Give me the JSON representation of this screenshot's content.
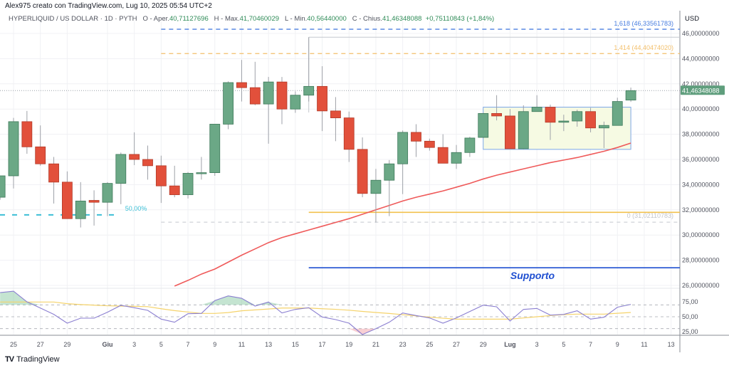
{
  "header": {
    "credit": "Alex975 creato con TradingView.com, Lug 10, 2025 05:54 UTC+2",
    "symbol": "HYPERLIQUID / US DOLLAR · 1D · PYTH",
    "open_label": "O - Aper.",
    "open": "40,71127696",
    "high_label": "H - Max.",
    "high": "41,70460029",
    "low_label": "L - Min.",
    "low": "40,56440000",
    "close_label": "C - Chius.",
    "close": "41,46348088",
    "change": "+0,75110843 (+1,84%)"
  },
  "currency": "USD",
  "branding": "TradingView",
  "colors": {
    "up": "#6ba886",
    "down": "#e2503b",
    "ma": "#ef5a5a",
    "rsi": "#8b7fd1",
    "rsi_ma": "#f5d36b",
    "fib_1618": "#4a7fe0",
    "fib_1414": "#f3bf6a",
    "support": "#1f4fd1",
    "half": "#3cbfd6",
    "last_price": "#5f9e7d"
  },
  "chart_data": {
    "type": "candlestick",
    "dates": [
      "May 24",
      "May 25",
      "May 26",
      "May 27",
      "May 28",
      "May 29",
      "May 30",
      "May 31",
      "Jun 1",
      "Jun 2",
      "Jun 3",
      "Jun 4",
      "Jun 5",
      "Jun 6",
      "Jun 7",
      "Jun 8",
      "Jun 9",
      "Jun 10",
      "Jun 11",
      "Jun 12",
      "Jun 13",
      "Jun 14",
      "Jun 15",
      "Jun 16",
      "Jun 17",
      "Jun 18",
      "Jun 19",
      "Jun 20",
      "Jun 21",
      "Jun 22",
      "Jun 23",
      "Jun 24",
      "Jun 25",
      "Jun 26",
      "Jun 27",
      "Jun 28",
      "Jun 29",
      "Jun 30",
      "Jul 1",
      "Jul 2",
      "Jul 3",
      "Jul 4",
      "Jul 5",
      "Jul 6",
      "Jul 7",
      "Jul 8",
      "Jul 9",
      "Jul 10"
    ],
    "ohlc": [
      [
        33.0,
        34.7,
        32.8,
        34.7
      ],
      [
        34.7,
        39.3,
        33.7,
        39.0
      ],
      [
        39.0,
        39.85,
        36.45,
        37.0
      ],
      [
        37.0,
        38.7,
        35.5,
        35.65
      ],
      [
        35.65,
        36.2,
        32.5,
        34.2
      ],
      [
        34.2,
        35.05,
        31.3,
        31.3
      ],
      [
        31.3,
        34.2,
        30.6,
        32.7
      ],
      [
        32.75,
        33.55,
        30.75,
        32.6
      ],
      [
        32.6,
        34.2,
        31.5,
        34.1
      ],
      [
        34.1,
        36.55,
        32.45,
        36.4
      ],
      [
        36.4,
        38.15,
        35.55,
        36.0
      ],
      [
        36.0,
        37.1,
        34.4,
        35.5
      ],
      [
        35.5,
        36.3,
        32.55,
        33.9
      ],
      [
        33.9,
        35.5,
        33.0,
        33.2
      ],
      [
        33.2,
        35.0,
        32.9,
        34.9
      ],
      [
        34.9,
        36.2,
        34.4,
        34.95
      ],
      [
        34.95,
        38.8,
        34.7,
        38.8
      ],
      [
        38.8,
        42.2,
        38.4,
        42.1
      ],
      [
        42.1,
        43.9,
        40.6,
        41.7
      ],
      [
        41.7,
        43.75,
        40.3,
        40.4
      ],
      [
        40.4,
        42.55,
        37.25,
        42.15
      ],
      [
        42.15,
        42.55,
        38.8,
        40.0
      ],
      [
        40.0,
        41.4,
        39.7,
        41.1
      ],
      [
        41.1,
        45.7,
        40.6,
        41.8
      ],
      [
        41.8,
        43.4,
        38.25,
        39.85
      ],
      [
        39.85,
        40.95,
        37.45,
        39.3
      ],
      [
        39.3,
        39.8,
        35.8,
        36.8
      ],
      [
        36.8,
        37.75,
        33.0,
        33.3
      ],
      [
        33.3,
        35.25,
        31.0,
        34.35
      ],
      [
        34.35,
        35.95,
        31.5,
        35.65
      ],
      [
        35.65,
        38.3,
        33.25,
        38.15
      ],
      [
        38.15,
        38.8,
        36.2,
        37.45
      ],
      [
        37.45,
        37.65,
        36.7,
        36.95
      ],
      [
        36.95,
        38.0,
        35.7,
        35.7
      ],
      [
        35.7,
        37.15,
        35.25,
        36.55
      ],
      [
        36.55,
        37.8,
        36.2,
        37.7
      ],
      [
        37.75,
        39.7,
        37.7,
        39.65
      ],
      [
        39.65,
        41.1,
        39.1,
        39.45
      ],
      [
        39.45,
        40.0,
        36.85,
        36.85
      ],
      [
        36.85,
        40.3,
        36.8,
        39.8
      ],
      [
        39.8,
        41.1,
        39.8,
        40.15
      ],
      [
        40.15,
        40.35,
        37.55,
        38.95
      ],
      [
        38.95,
        39.55,
        38.25,
        39.05
      ],
      [
        39.05,
        39.95,
        38.6,
        39.8
      ],
      [
        39.8,
        40.1,
        38.15,
        38.5
      ],
      [
        38.5,
        39.0,
        36.9,
        38.7
      ],
      [
        38.7,
        40.9,
        38.7,
        40.6
      ],
      [
        40.71127696,
        41.70460029,
        40.5644,
        41.46348088
      ]
    ],
    "moving_average": [
      null,
      null,
      null,
      null,
      null,
      null,
      null,
      null,
      null,
      null,
      null,
      null,
      null,
      25.95,
      26.4,
      26.9,
      27.3,
      27.85,
      28.4,
      28.9,
      29.4,
      29.8,
      30.1,
      30.4,
      30.7,
      31.0,
      31.3,
      31.65,
      32.0,
      32.35,
      32.7,
      33.0,
      33.25,
      33.5,
      33.8,
      34.1,
      34.45,
      34.75,
      35.0,
      35.25,
      35.5,
      35.75,
      35.95,
      36.15,
      36.4,
      36.65,
      36.95,
      37.3
    ],
    "rsi": [
      90.7,
      93,
      75.1,
      64.7,
      54,
      39.2,
      47.6,
      47.6,
      57.6,
      69.2,
      65.2,
      60.8,
      46,
      40.8,
      55.2,
      55.6,
      77.2,
      85.1,
      81.1,
      68,
      74.8,
      56.4,
      62.4,
      65.2,
      49.6,
      45.2,
      39.2,
      20.1,
      30,
      40.8,
      56.4,
      52,
      48,
      39.2,
      48,
      58.8,
      69.5,
      66.8,
      42.8,
      62.4,
      64,
      52.8,
      54,
      60,
      46,
      49.2,
      66,
      70.8
    ],
    "rsi_ma": [
      74.8,
      74.8,
      74.8,
      74.8,
      74.8,
      72,
      70.5,
      69.5,
      68.5,
      68,
      67.5,
      67,
      63.5,
      60.3,
      58,
      55.6,
      55.6,
      57,
      60,
      61.5,
      63,
      64.7,
      64.7,
      64.7,
      63.5,
      62.5,
      61,
      59,
      57.2,
      55.5,
      53.5,
      51.5,
      49.3,
      47.5,
      46,
      46,
      46,
      46,
      46,
      48,
      50,
      52,
      53.5,
      54.4,
      54.4,
      54.4,
      55.8,
      57.2
    ],
    "price_axis": {
      "ylim": [
        25.5,
        46.6
      ],
      "ticks": [
        "46,00000000",
        "44,00000000",
        "42,00000000",
        "40,00000000",
        "38,00000000",
        "36,00000000",
        "34,00000000",
        "32,00000000",
        "30,00000000",
        "28,00000000",
        "26,00000000"
      ],
      "tick_values": [
        46,
        44,
        42,
        40,
        38,
        36,
        34,
        32,
        30,
        28,
        26
      ]
    },
    "rsi_axis": {
      "ticks": [
        "75,00",
        "50,00",
        "25,00"
      ],
      "tick_values": [
        75,
        50,
        25
      ],
      "bands": [
        70,
        50,
        30
      ]
    },
    "time_axis": {
      "labels": [
        "25",
        "27",
        "29",
        "Giu",
        "3",
        "5",
        "7",
        "9",
        "11",
        "13",
        "15",
        "17",
        "19",
        "21",
        "23",
        "25",
        "27",
        "29",
        "Lug",
        "3",
        "5",
        "7",
        "9",
        "11",
        "13"
      ],
      "label_index": [
        1,
        3,
        5,
        8,
        10,
        12,
        14,
        16,
        18,
        20,
        22,
        24,
        26,
        28,
        30,
        32,
        34,
        36,
        38,
        40,
        42,
        44,
        46,
        48,
        50
      ]
    },
    "last_price_label": "41,46348088",
    "last_price": 41.46348088,
    "annotations": {
      "fib_1618": {
        "label": "1,618 (46,33561783)",
        "value": 46.33561783,
        "from_index": 12
      },
      "fib_1414": {
        "label": "1,414 (44,40474020)",
        "value": 44.4047402,
        "from_index": 12
      },
      "fib_0": {
        "label": "0 (31,02110783)",
        "value": 31.02110783,
        "from_index": 12
      },
      "fib_top": {
        "value": 45.7,
        "from_index": 23
      },
      "half": {
        "label": "50,00%",
        "value": 31.6,
        "from_index": 0,
        "to_index": 9
      },
      "support_orange": {
        "value": 31.8,
        "from_index": 23
      },
      "support": {
        "label": "Supporto",
        "value": 27.4,
        "from_index": 23
      },
      "range_box": {
        "from_index": 36,
        "to_index": 47,
        "low": 36.8,
        "high": 40.15
      }
    }
  }
}
